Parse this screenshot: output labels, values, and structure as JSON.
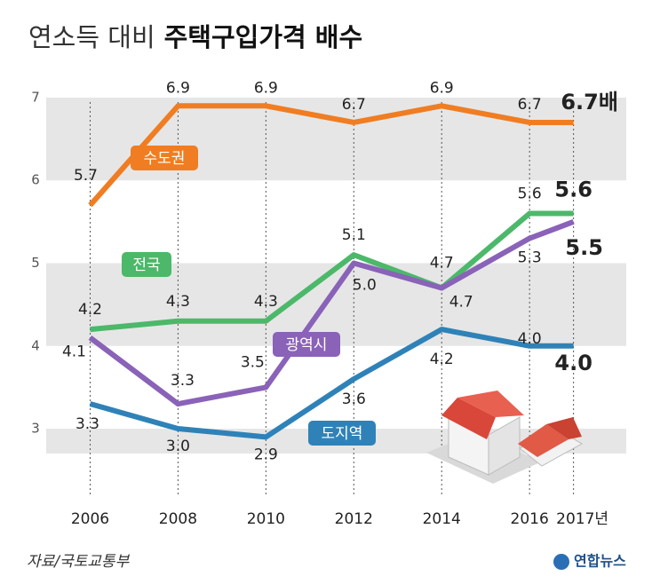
{
  "chart_data": {
    "type": "line",
    "title_parts": [
      "연소득 대비",
      "주택구입가격 배수"
    ],
    "source": "자료/국토교통부",
    "credit": "연합뉴스",
    "x": [
      2006,
      2008,
      2010,
      2012,
      2014,
      2016,
      2017
    ],
    "xlim": [
      2005,
      2018.2
    ],
    "xticks": [
      2006,
      2008,
      2010,
      2012,
      2014,
      2016,
      {
        "value": 2017,
        "label": "2017년"
      }
    ],
    "ylim": [
      2.7,
      7.3
    ],
    "yticks": [
      3,
      4,
      5,
      6,
      7
    ],
    "grid": "bands",
    "series": [
      {
        "name": "수도권",
        "color": "#f07d22",
        "values": [
          5.7,
          6.9,
          6.9,
          6.7,
          6.9,
          6.7,
          6.7
        ],
        "value_labels": [
          "5.7",
          "6.9",
          "6.9",
          "6.7",
          "6.9",
          "6.7",
          "6.7배"
        ]
      },
      {
        "name": "전국",
        "color": "#4cb86a",
        "values": [
          4.2,
          4.3,
          4.3,
          5.1,
          4.7,
          5.6,
          5.6
        ],
        "value_labels": [
          "4.2",
          "4.3",
          "4.3",
          "5.1",
          "4.7",
          "5.6",
          "5.6"
        ]
      },
      {
        "name": "광역시",
        "color": "#8a62b8",
        "values": [
          4.1,
          3.3,
          3.5,
          5.0,
          4.7,
          5.3,
          5.5
        ],
        "value_labels": [
          "4.1",
          "3.3",
          "3.5",
          "5.0",
          "4.7",
          "5.3",
          "5.5"
        ]
      },
      {
        "name": "도지역",
        "color": "#2f82b8",
        "values": [
          3.3,
          3.0,
          2.9,
          3.6,
          4.2,
          4.0,
          4.0
        ],
        "value_labels": [
          "3.3",
          "3.0",
          "2.9",
          "3.6",
          "4.2",
          "4.0",
          "4.0"
        ]
      }
    ]
  }
}
